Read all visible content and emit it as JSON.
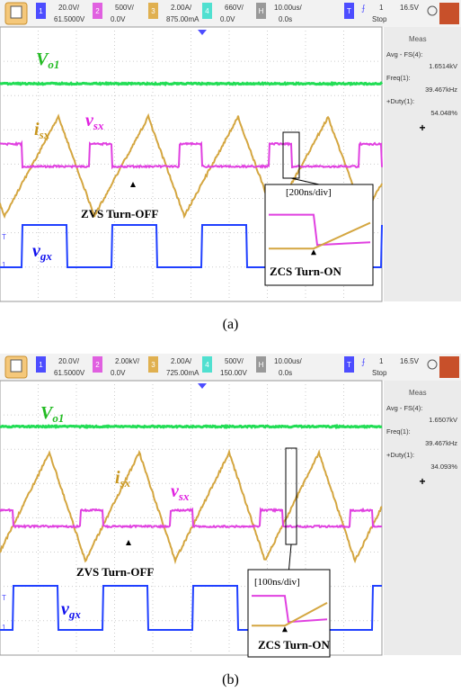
{
  "panels": [
    {
      "toolbar": {
        "channels": [
          {
            "id": "1",
            "scale": "20.0V/",
            "offset": "61.5000V"
          },
          {
            "id": "2",
            "scale": "500V/",
            "offset": "0.0V"
          },
          {
            "id": "3",
            "scale": "2.00A/",
            "offset": "875.00mA"
          },
          {
            "id": "4",
            "scale": "660V/",
            "offset": "0.0V"
          }
        ],
        "horizontal": {
          "id": "H",
          "scale": "10.00us/",
          "offset": "0.0s"
        },
        "trigger": {
          "id": "T",
          "source": "1",
          "state": "Stop",
          "level": "16.5V"
        }
      },
      "measurements": {
        "title": "Meas",
        "items": [
          {
            "name": "Avg - FS(4):",
            "value": "1.6514kV"
          },
          {
            "name": "Freq(1):",
            "value": "39.467kHz"
          },
          {
            "name": "+Duty(1):",
            "value": "54.048%"
          }
        ],
        "add": "+"
      },
      "markers": [
        "T",
        "1"
      ],
      "labels": {
        "vo1": {
          "main": "V",
          "sub": "o1"
        },
        "isx": {
          "main": "i",
          "sub": "sx"
        },
        "vsx": {
          "main": "v",
          "sub": "sx"
        },
        "vgx": {
          "main": "v",
          "sub": "gx"
        }
      },
      "annotations": {
        "zvs": "ZVS Turn-OFF",
        "zcs": "ZCS Turn-ON",
        "zoom": "[200ns/div]"
      },
      "caption": "(a)"
    },
    {
      "toolbar": {
        "channels": [
          {
            "id": "1",
            "scale": "20.0V/",
            "offset": "61.5000V"
          },
          {
            "id": "2",
            "scale": "2.00kV/",
            "offset": "0.0V"
          },
          {
            "id": "3",
            "scale": "2.00A/",
            "offset": "725.00mA"
          },
          {
            "id": "4",
            "scale": "500V/",
            "offset": "150.00V"
          }
        ],
        "horizontal": {
          "id": "H",
          "scale": "10.00us/",
          "offset": "0.0s"
        },
        "trigger": {
          "id": "T",
          "source": "1",
          "state": "Stop",
          "level": "16.5V"
        }
      },
      "measurements": {
        "title": "Meas",
        "items": [
          {
            "name": "Avg - FS(4):",
            "value": "1.6507kV"
          },
          {
            "name": "Freq(1):",
            "value": "39.467kHz"
          },
          {
            "name": "+Duty(1):",
            "value": "34.093%"
          }
        ],
        "add": "+"
      },
      "markers": [
        "T",
        "1"
      ],
      "labels": {
        "vo1": {
          "main": "V",
          "sub": "o1"
        },
        "isx": {
          "main": "i",
          "sub": "sx"
        },
        "vsx": {
          "main": "v",
          "sub": "sx"
        },
        "vgx": {
          "main": "v",
          "sub": "gx"
        }
      },
      "annotations": {
        "zvs": "ZVS Turn-OFF",
        "zcs": "ZCS Turn-ON",
        "zoom": "[100ns/div]"
      },
      "caption": "(b)"
    }
  ]
}
